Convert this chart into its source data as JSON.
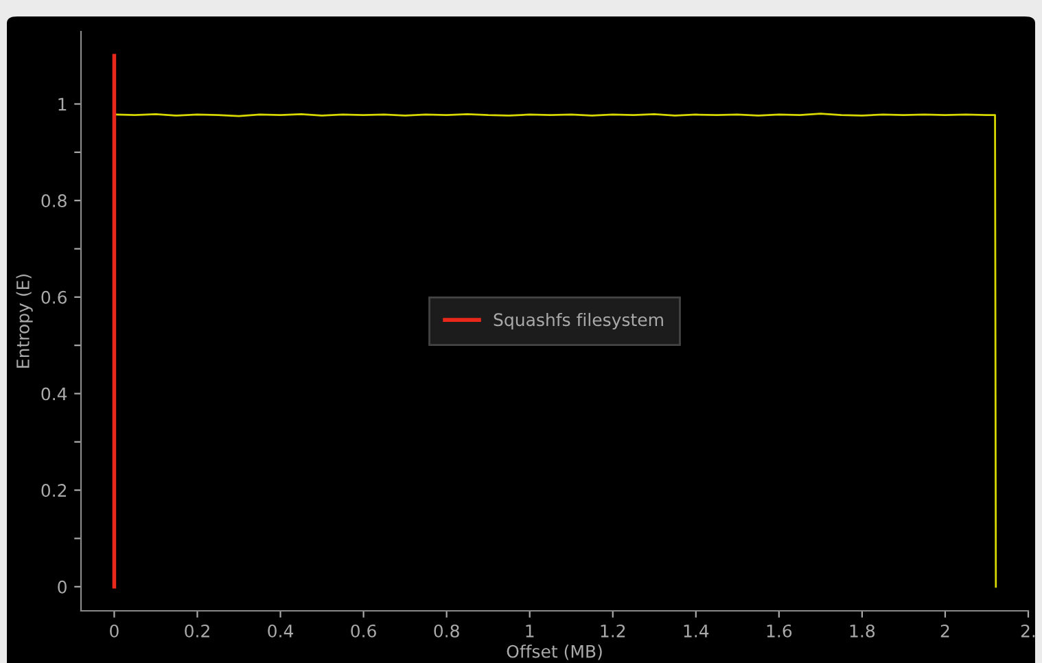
{
  "chart_data": {
    "type": "line",
    "xlabel": "Offset (MB)",
    "ylabel": "Entropy (E)",
    "xlim": [
      -0.08,
      2.2
    ],
    "ylim": [
      -0.05,
      1.15
    ],
    "xticks": [
      0,
      0.2,
      0.4,
      0.6,
      0.8,
      1,
      1.2,
      1.4,
      1.6,
      1.8,
      2,
      {
        "value": 2.2,
        "label": "2."
      }
    ],
    "yticks": [
      0,
      {
        "value": 0.1,
        "label": null
      },
      0.2,
      {
        "value": 0.3,
        "label": null
      },
      0.4,
      {
        "value": 0.5,
        "label": null
      },
      0.6,
      {
        "value": 0.7,
        "label": null
      },
      0.8,
      {
        "value": 0.9,
        "label": null
      },
      1
    ],
    "grid": false,
    "legend": "center",
    "marker": "none",
    "line_style": "solid",
    "series": [
      {
        "color": "#d8d800",
        "x": [
          0.005,
          0.05,
          0.1,
          0.15,
          0.2,
          0.25,
          0.3,
          0.35,
          0.4,
          0.45,
          0.5,
          0.55,
          0.6,
          0.65,
          0.7,
          0.75,
          0.8,
          0.85,
          0.9,
          0.95,
          1,
          1.05,
          1.1,
          1.15,
          1.2,
          1.25,
          1.3,
          1.35,
          1.4,
          1.45,
          1.5,
          1.55,
          1.6,
          1.65,
          1.7,
          1.75,
          1.8,
          1.85,
          1.9,
          1.95,
          2,
          2.05,
          2.1,
          2.12,
          2.122
        ],
        "values": [
          0.978,
          0.977,
          0.979,
          0.976,
          0.978,
          0.977,
          0.975,
          0.978,
          0.977,
          0.979,
          0.976,
          0.978,
          0.977,
          0.978,
          0.976,
          0.978,
          0.977,
          0.979,
          0.977,
          0.976,
          0.978,
          0.977,
          0.978,
          0.976,
          0.978,
          0.977,
          0.979,
          0.976,
          0.978,
          0.977,
          0.978,
          0.976,
          0.978,
          0.977,
          0.98,
          0.977,
          0.976,
          0.978,
          0.977,
          0.978,
          0.977,
          0.978,
          0.977,
          0.977,
          0
        ]
      },
      {
        "name": "Squashfs filesystem",
        "color": "#e8281a",
        "x": [
          0,
          0
        ],
        "values": [
          0,
          1.1
        ]
      }
    ]
  }
}
